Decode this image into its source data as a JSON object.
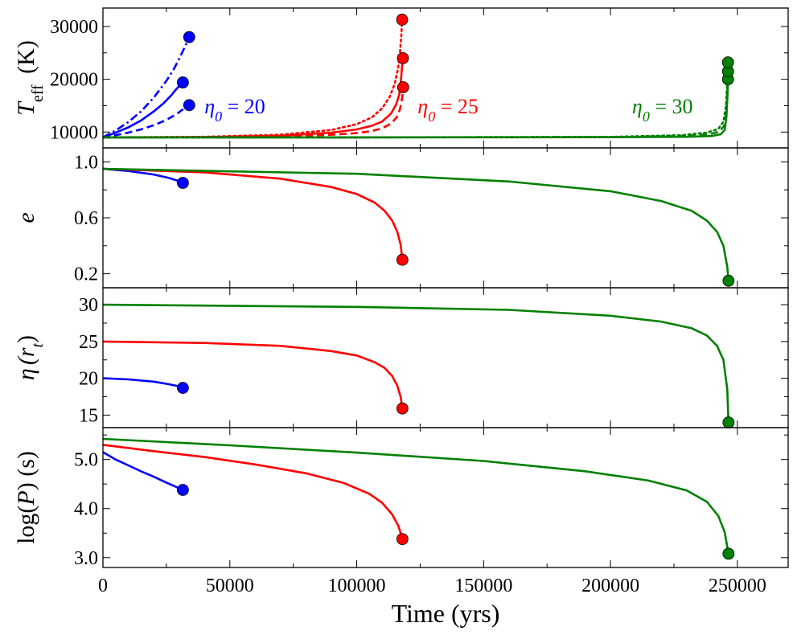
{
  "chart_data": {
    "type": "line",
    "xlabel": "Time (yrs)",
    "xlim": [
      0,
      270000
    ],
    "xticks": [
      0,
      50000,
      100000,
      150000,
      200000,
      250000
    ],
    "xtick_labels": [
      "0",
      "50000",
      "100000",
      "150000",
      "200000",
      "250000"
    ],
    "colors": {
      "eta20": "#0000ff",
      "eta25": "#ff0000",
      "eta30": "#008000"
    },
    "panels": [
      {
        "id": "teff",
        "ylabel_main": "T",
        "ylabel_sub": "eff",
        "ylabel_unit": "(K)",
        "ylim": [
          7000,
          33500
        ],
        "yticks": [
          10000,
          20000,
          30000
        ],
        "ytick_labels": [
          "10000",
          "20000",
          "30000"
        ],
        "annotations": [
          {
            "text": "η",
            "sub": "0",
            "rest": " = 20",
            "color": "#0000ff",
            "x": 40000,
            "y": 14900
          },
          {
            "text": "η",
            "sub": "0",
            "rest": " = 25",
            "color": "#ff0000",
            "x": 124000,
            "y": 14900
          },
          {
            "text": "η",
            "sub": "0",
            "rest": " = 30",
            "color": "#008000",
            "x": 208500,
            "y": 14900
          }
        ],
        "series": [
          {
            "name": "eta20-solid",
            "color": "#0000ff",
            "dash": "solid",
            "x": [
              0,
              5000,
              10000,
              15000,
              20000,
              24000,
              27000,
              29000,
              30500,
              31500
            ],
            "y": [
              9000,
              9900,
              10900,
              12200,
              13900,
              15500,
              17000,
              18200,
              18900,
              19400
            ]
          },
          {
            "name": "eta20-dashed",
            "color": "#0000ff",
            "dash": "dashed",
            "x": [
              0,
              5000,
              10000,
              15000,
              20000,
              25000,
              29000,
              31500,
              33000,
              34000
            ],
            "y": [
              9000,
              9400,
              9900,
              10500,
              11300,
              12300,
              13400,
              14300,
              14800,
              15100
            ]
          },
          {
            "name": "eta20-dotted",
            "color": "#0000ff",
            "dash": "dashdot",
            "x": [
              0,
              5000,
              10000,
              15000,
              20000,
              25000,
              28000,
              30500,
              32500,
              34000
            ],
            "y": [
              9000,
              10300,
              11900,
              13900,
              16500,
              19700,
              22000,
              24300,
              26400,
              28000
            ]
          },
          {
            "name": "eta25-solid",
            "color": "#ff0000",
            "dash": "solid",
            "x": [
              0,
              40000,
              70000,
              90000,
              100000,
              106000,
              110000,
              113500,
              115500,
              116700,
              117300,
              117800,
              118200
            ],
            "y": [
              9000,
              9050,
              9300,
              9900,
              10500,
              11200,
              12000,
              13500,
              15200,
              17000,
              19000,
              22000,
              24000
            ]
          },
          {
            "name": "eta25-dashed",
            "color": "#ff0000",
            "dash": "dashed",
            "x": [
              0,
              40000,
              70000,
              90000,
              100000,
              106000,
              110000,
              113500,
              115800,
              117000,
              117700,
              118100,
              118300
            ],
            "y": [
              9000,
              9030,
              9150,
              9500,
              9800,
              10200,
              10700,
              11600,
              12800,
              14300,
              15800,
              17300,
              18500
            ]
          },
          {
            "name": "eta25-dotted",
            "color": "#ff0000",
            "dash": "dotted",
            "x": [
              0,
              40000,
              70000,
              90000,
              100000,
              106000,
              110000,
              113000,
              115000,
              116300,
              117100,
              117600,
              117900
            ],
            "y": [
              9000,
              9100,
              9500,
              10400,
              11500,
              12800,
              14500,
              16700,
              19200,
              22100,
              25300,
              28500,
              31300
            ]
          },
          {
            "name": "eta30-solid",
            "color": "#008000",
            "dash": "solid",
            "x": [
              0,
              100000,
              200000,
              230000,
              240000,
              243500,
              245000,
              245700,
              246100,
              246300
            ],
            "y": [
              9000,
              9000,
              9030,
              9100,
              9250,
              9600,
              10400,
              13000,
              17000,
              20000
            ]
          },
          {
            "name": "eta30-dashed",
            "color": "#008000",
            "dash": "dashed",
            "x": [
              0,
              100000,
              200000,
              230000,
              239000,
              243000,
              244800,
              245600,
              246000,
              246300
            ],
            "y": [
              9000,
              9000,
              9050,
              9250,
              9600,
              10100,
              11200,
              13500,
              18000,
              21500
            ]
          },
          {
            "name": "eta30-dotted",
            "color": "#008000",
            "dash": "dotted",
            "x": [
              0,
              100000,
              200000,
              228000,
              238000,
              242500,
              244500,
              245500,
              246000,
              246300
            ],
            "y": [
              9000,
              9000,
              9080,
              9400,
              9900,
              10600,
              12000,
              15000,
              19500,
              23200
            ]
          }
        ],
        "markers": [
          {
            "color": "#0000ff",
            "x": 31500,
            "y": 19400
          },
          {
            "color": "#0000ff",
            "x": 34000,
            "y": 15100
          },
          {
            "color": "#0000ff",
            "x": 34000,
            "y": 28000
          },
          {
            "color": "#ff0000",
            "x": 118200,
            "y": 24000
          },
          {
            "color": "#ff0000",
            "x": 118300,
            "y": 18500
          },
          {
            "color": "#ff0000",
            "x": 117900,
            "y": 31300
          },
          {
            "color": "#008000",
            "x": 246300,
            "y": 20000
          },
          {
            "color": "#008000",
            "x": 246300,
            "y": 21500
          },
          {
            "color": "#008000",
            "x": 246300,
            "y": 23200
          }
        ]
      },
      {
        "id": "ecc",
        "ylabel_main": "e",
        "ylim": [
          0.1,
          1.1
        ],
        "yticks": [
          0.2,
          0.6,
          1.0
        ],
        "ytick_labels": [
          "0.2",
          "0.6",
          "1.0"
        ],
        "series": [
          {
            "name": "eta20",
            "color": "#0000ff",
            "dash": "solid",
            "x": [
              0,
              10000,
              20000,
              26000,
              30000,
              31500
            ],
            "y": [
              0.95,
              0.935,
              0.91,
              0.885,
              0.862,
              0.85
            ]
          },
          {
            "name": "eta25",
            "color": "#ff0000",
            "dash": "solid",
            "x": [
              0,
              40000,
              70000,
              90000,
              100000,
              107000,
              111000,
              114000,
              116000,
              117300,
              118000
            ],
            "y": [
              0.95,
              0.925,
              0.88,
              0.82,
              0.77,
              0.71,
              0.65,
              0.58,
              0.5,
              0.41,
              0.3
            ]
          },
          {
            "name": "eta30",
            "color": "#008000",
            "dash": "solid",
            "x": [
              0,
              100000,
              160000,
              200000,
              220000,
              232000,
              238000,
              242000,
              244500,
              246000,
              246500
            ],
            "y": [
              0.95,
              0.915,
              0.86,
              0.79,
              0.72,
              0.65,
              0.58,
              0.5,
              0.4,
              0.25,
              0.15
            ]
          }
        ],
        "markers": [
          {
            "color": "#0000ff",
            "x": 31500,
            "y": 0.85
          },
          {
            "color": "#ff0000",
            "x": 118000,
            "y": 0.3
          },
          {
            "color": "#008000",
            "x": 246500,
            "y": 0.15
          }
        ]
      },
      {
        "id": "eta",
        "ylabel_main": "η",
        "ylabel_arg": "(r",
        "ylabel_argsub": "t",
        "ylabel_close": ")",
        "ylim": [
          13.3,
          32.3
        ],
        "yticks": [
          15,
          20,
          25,
          30
        ],
        "ytick_labels": [
          "15",
          "20",
          "25",
          "30"
        ],
        "series": [
          {
            "name": "eta20",
            "color": "#0000ff",
            "dash": "solid",
            "x": [
              0,
              10000,
              20000,
              26000,
              30000,
              31500
            ],
            "y": [
              20.0,
              19.85,
              19.55,
              19.2,
              18.9,
              18.7
            ]
          },
          {
            "name": "eta25",
            "color": "#ff0000",
            "dash": "solid",
            "x": [
              0,
              40000,
              70000,
              90000,
              100000,
              107000,
              111000,
              114000,
              116000,
              117300,
              118000
            ],
            "y": [
              25.0,
              24.8,
              24.4,
              23.7,
              23.1,
              22.2,
              21.4,
              20.3,
              19.0,
              17.5,
              15.9
            ]
          },
          {
            "name": "eta30",
            "color": "#008000",
            "dash": "solid",
            "x": [
              0,
              100000,
              160000,
              200000,
              220000,
              232000,
              238000,
              242000,
              244500,
              246000,
              246500
            ],
            "y": [
              30.0,
              29.7,
              29.3,
              28.5,
              27.7,
              26.8,
              25.8,
              24.4,
              22.5,
              18.5,
              14.0
            ]
          }
        ],
        "markers": [
          {
            "color": "#0000ff",
            "x": 31500,
            "y": 18.7
          },
          {
            "color": "#ff0000",
            "x": 118000,
            "y": 15.9
          },
          {
            "color": "#008000",
            "x": 246500,
            "y": 14.0
          }
        ]
      },
      {
        "id": "logp",
        "ylabel_main": "log(",
        "ylabel_sym": "P",
        "ylabel_close": ") (s)",
        "ylim": [
          2.8,
          5.65
        ],
        "yticks": [
          3.0,
          4.0,
          5.0
        ],
        "ytick_labels": [
          "3.0",
          "4.0",
          "5.0"
        ],
        "series": [
          {
            "name": "eta20",
            "color": "#0000ff",
            "dash": "solid",
            "x": [
              0,
              5000,
              10000,
              15000,
              20000,
              25000,
              29000,
              31500
            ],
            "y": [
              5.15,
              5.0,
              4.88,
              4.76,
              4.65,
              4.53,
              4.44,
              4.38
            ]
          },
          {
            "name": "eta25",
            "color": "#ff0000",
            "dash": "solid",
            "x": [
              0,
              20000,
              40000,
              60000,
              80000,
              95000,
              105000,
              110000,
              114000,
              116500,
              118000
            ],
            "y": [
              5.3,
              5.17,
              5.05,
              4.9,
              4.72,
              4.52,
              4.3,
              4.12,
              3.88,
              3.64,
              3.38
            ]
          },
          {
            "name": "eta30",
            "color": "#008000",
            "dash": "solid",
            "x": [
              0,
              50000,
              100000,
              150000,
              190000,
              215000,
              230000,
              238000,
              242500,
              245000,
              246500
            ],
            "y": [
              5.42,
              5.29,
              5.14,
              4.97,
              4.76,
              4.57,
              4.37,
              4.14,
              3.85,
              3.52,
              3.08
            ]
          }
        ],
        "markers": [
          {
            "color": "#0000ff",
            "x": 31500,
            "y": 4.38
          },
          {
            "color": "#ff0000",
            "x": 118000,
            "y": 3.38
          },
          {
            "color": "#008000",
            "x": 246500,
            "y": 3.08
          }
        ]
      }
    ]
  }
}
